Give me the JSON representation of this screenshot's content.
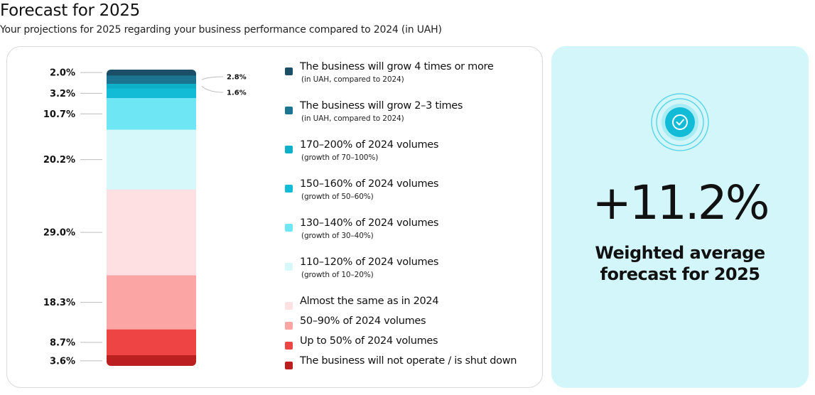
{
  "header": {
    "title": "Forecast for 2025",
    "subtitle": "Your projections for 2025 regarding your business performance compared to 2024 (in UAH)"
  },
  "chart_data": {
    "type": "bar",
    "stacked": true,
    "orientation": "vertical",
    "ylim": [
      0,
      100
    ],
    "segments": [
      {
        "name": "The business will grow 4 times or more",
        "note": "(in UAH, compared to 2024)",
        "value": 2.0,
        "label": "2.0%",
        "label_side": "left",
        "color": "#1b4f67"
      },
      {
        "name": "The business will grow 2–3 times",
        "note": "(in UAH, compared to 2024)",
        "value": 2.8,
        "label": "2.8%",
        "label_side": "right",
        "color": "#1b7590"
      },
      {
        "name": "170–200% of 2024 volumes",
        "note": "(growth of 70–100%)",
        "value": 1.6,
        "label": "1.6%",
        "label_side": "right",
        "color": "#0eb0c8"
      },
      {
        "name": "150–160% of 2024 volumes",
        "note": "(growth of 50–60%)",
        "value": 3.2,
        "label": "3.2%",
        "label_side": "left",
        "color": "#12bcd6"
      },
      {
        "name": "130–140% of 2024 volumes",
        "note": "(growth of 30–40%)",
        "value": 10.7,
        "label": "10.7%",
        "label_side": "left",
        "color": "#6ee6f3"
      },
      {
        "name": "110–120% of 2024 volumes",
        "note": "(growth of 10–20%)",
        "value": 20.2,
        "label": "20.2%",
        "label_side": "left",
        "color": "#d6f8fb"
      },
      {
        "name": "Almost the same as in 2024",
        "note": "",
        "value": 29.0,
        "label": "29.0%",
        "label_side": "left",
        "color": "#ffe0e2"
      },
      {
        "name": "50–90% of 2024 volumes",
        "note": "",
        "value": 18.3,
        "label": "18.3%",
        "label_side": "left",
        "color": "#fba5a5"
      },
      {
        "name": "Up to 50% of 2024 volumes",
        "note": "",
        "value": 8.7,
        "label": "8.7%",
        "label_side": "left",
        "color": "#ef4444"
      },
      {
        "name": "The business will not operate / is shut down",
        "note": "",
        "value": 3.6,
        "label": "3.6%",
        "label_side": "left",
        "color": "#bb1f1f"
      }
    ]
  },
  "kpi": {
    "value": "+11.2%",
    "caption_line1": "Weighted average",
    "caption_line2": "forecast for 2025",
    "icon": "check-circle-icon",
    "accent_color": "#12bcd6"
  }
}
